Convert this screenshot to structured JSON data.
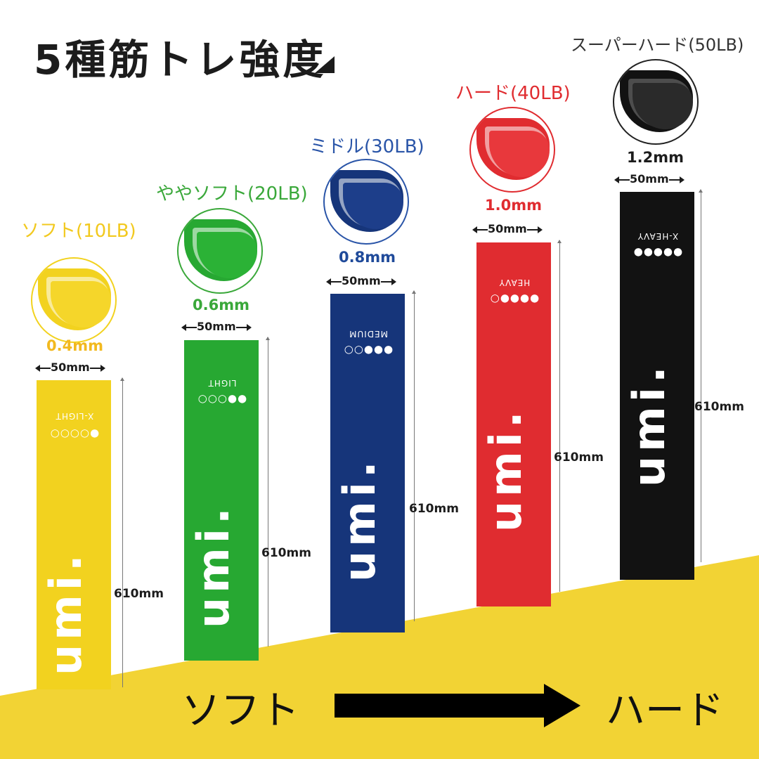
{
  "title": "5種筋トレ強度",
  "bands": [
    {
      "name": "ソフト(10LB)",
      "thickness": "0.4mm",
      "width": "50mm",
      "length": "610mm",
      "grade": "X-LIGHT",
      "dots": "●○○○○",
      "logo": "umi.",
      "color": "#f2d21f",
      "label_color": "#f2c91f",
      "thick_color": "#f2b91f",
      "fill_levels": 1
    },
    {
      "name": "ややソフト(20LB)",
      "thickness": "0.6mm",
      "width": "50mm",
      "length": "610mm",
      "grade": "LIGHT",
      "dots": "●●○○○",
      "logo": "umi.",
      "color": "#27a832",
      "label_color": "#3aa83a",
      "thick_color": "#3aa83a",
      "fill_levels": 2
    },
    {
      "name": "ミドル(30LB)",
      "thickness": "0.8mm",
      "width": "50mm",
      "length": "610mm",
      "grade": "MEDIUM",
      "dots": "●●●○○",
      "logo": "umi.",
      "color": "#16357a",
      "label_color": "#2a55a8",
      "thick_color": "#1f4a9a",
      "fill_levels": 3
    },
    {
      "name": "ハード(40LB)",
      "thickness": "1.0mm",
      "width": "50mm",
      "length": "610mm",
      "grade": "HEAVY",
      "dots": "●●●●○",
      "logo": "umi.",
      "color": "#e02c30",
      "label_color": "#e02c30",
      "thick_color": "#e02c30",
      "fill_levels": 4
    },
    {
      "name": "スーパーハード(50LB)",
      "thickness": "1.2mm",
      "width": "50mm",
      "length": "610mm",
      "grade": "X-HEAVY",
      "dots": "●●●●●",
      "logo": "umi.",
      "color": "#121212",
      "label_color": "#333333",
      "thick_color": "#1c1c1c",
      "fill_levels": 5
    }
  ],
  "scale": {
    "from": "ソフト",
    "to": "ハード"
  },
  "colors": {
    "slope": "#f2d334",
    "text": "#1c1c1c"
  }
}
